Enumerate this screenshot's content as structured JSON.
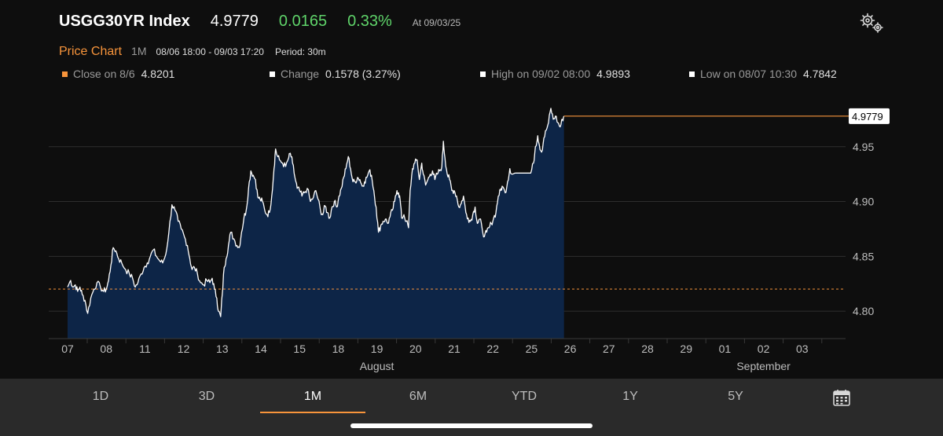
{
  "header": {
    "title": "USGG30YR Index",
    "last": "4.9779",
    "change": "0.0165",
    "change_pct": "0.33%",
    "as_of": "At 09/03/25",
    "change_color": "#5fd46a"
  },
  "subheader": {
    "label": "Price Chart",
    "period_button": "1M",
    "range": "08/06 18:00 - 09/03 17:20",
    "period": "Period: 30m"
  },
  "stats": {
    "close_label": "Close on 8/6",
    "close_value": "4.8201",
    "change_label": "Change",
    "change_value": "0.1578 (3.27%)",
    "high_label": "High on 09/02 08:00",
    "high_value": "4.9893",
    "low_label": "Low on 08/07 10:30",
    "low_value": "4.7842"
  },
  "chart_data": {
    "type": "area",
    "ylim": [
      4.775,
      5.005
    ],
    "yticks": [
      4.8,
      4.85,
      4.9,
      4.95
    ],
    "ytick_labels": [
      "4.80",
      "4.85",
      "4.90",
      "4.95"
    ],
    "reference_line": 4.8201,
    "last_value_label": "4.9779",
    "days": [
      "07",
      "08",
      "11",
      "12",
      "13",
      "14",
      "15",
      "18",
      "19",
      "20",
      "21",
      "22",
      "25",
      "26",
      "27",
      "28",
      "29",
      "01",
      "02",
      "03"
    ],
    "months": [
      "August",
      "September"
    ],
    "anchors": [
      [
        0,
        4.822
      ],
      [
        0.08,
        4.828
      ],
      [
        0.14,
        4.822
      ],
      [
        0.2,
        4.824
      ],
      [
        0.26,
        4.818
      ],
      [
        0.32,
        4.822
      ],
      [
        0.38,
        4.815
      ],
      [
        0.45,
        4.81
      ],
      [
        0.52,
        4.798
      ],
      [
        0.6,
        4.812
      ],
      [
        0.68,
        4.82
      ],
      [
        0.76,
        4.826
      ],
      [
        0.85,
        4.822
      ],
      [
        0.93,
        4.818
      ],
      [
        1.0,
        4.82
      ],
      [
        1.06,
        4.828
      ],
      [
        1.12,
        4.842
      ],
      [
        1.18,
        4.858
      ],
      [
        1.25,
        4.855
      ],
      [
        1.32,
        4.848
      ],
      [
        1.4,
        4.844
      ],
      [
        1.5,
        4.838
      ],
      [
        1.6,
        4.834
      ],
      [
        1.68,
        4.83
      ],
      [
        1.75,
        4.822
      ],
      [
        1.82,
        4.826
      ],
      [
        1.9,
        4.834
      ],
      [
        1.98,
        4.84
      ],
      [
        2.06,
        4.844
      ],
      [
        2.14,
        4.85
      ],
      [
        2.22,
        4.856
      ],
      [
        2.3,
        4.85
      ],
      [
        2.38,
        4.846
      ],
      [
        2.46,
        4.844
      ],
      [
        2.54,
        4.852
      ],
      [
        2.62,
        4.872
      ],
      [
        2.7,
        4.897
      ],
      [
        2.78,
        4.892
      ],
      [
        2.86,
        4.882
      ],
      [
        2.94,
        4.875
      ],
      [
        3.02,
        4.868
      ],
      [
        3.1,
        4.86
      ],
      [
        3.16,
        4.848
      ],
      [
        3.22,
        4.838
      ],
      [
        3.28,
        4.84
      ],
      [
        3.36,
        4.834
      ],
      [
        3.44,
        4.826
      ],
      [
        3.52,
        4.824
      ],
      [
        3.6,
        4.828
      ],
      [
        3.68,
        4.826
      ],
      [
        3.74,
        4.83
      ],
      [
        3.8,
        4.82
      ],
      [
        3.86,
        4.812
      ],
      [
        3.9,
        4.8
      ],
      [
        3.96,
        4.795
      ],
      [
        4.0,
        4.815
      ],
      [
        4.05,
        4.84
      ],
      [
        4.1,
        4.848
      ],
      [
        4.16,
        4.86
      ],
      [
        4.22,
        4.872
      ],
      [
        4.3,
        4.866
      ],
      [
        4.38,
        4.86
      ],
      [
        4.44,
        4.858
      ],
      [
        4.5,
        4.872
      ],
      [
        4.56,
        4.885
      ],
      [
        4.62,
        4.892
      ],
      [
        4.68,
        4.912
      ],
      [
        4.74,
        4.928
      ],
      [
        4.8,
        4.924
      ],
      [
        4.86,
        4.92
      ],
      [
        4.92,
        4.904
      ],
      [
        4.98,
        4.902
      ],
      [
        5.04,
        4.9
      ],
      [
        5.1,
        4.892
      ],
      [
        5.16,
        4.888
      ],
      [
        5.22,
        4.89
      ],
      [
        5.28,
        4.905
      ],
      [
        5.34,
        4.93
      ],
      [
        5.38,
        4.948
      ],
      [
        5.42,
        4.942
      ],
      [
        5.48,
        4.938
      ],
      [
        5.56,
        4.935
      ],
      [
        5.64,
        4.932
      ],
      [
        5.72,
        4.94
      ],
      [
        5.76,
        4.944
      ],
      [
        5.82,
        4.935
      ],
      [
        5.88,
        4.922
      ],
      [
        5.94,
        4.912
      ],
      [
        6.0,
        4.91
      ],
      [
        6.06,
        4.905
      ],
      [
        6.12,
        4.908
      ],
      [
        6.2,
        4.912
      ],
      [
        6.28,
        4.9
      ],
      [
        6.36,
        4.904
      ],
      [
        6.42,
        4.91
      ],
      [
        6.48,
        4.902
      ],
      [
        6.54,
        4.892
      ],
      [
        6.6,
        4.888
      ],
      [
        6.66,
        4.896
      ],
      [
        6.72,
        4.89
      ],
      [
        6.78,
        4.885
      ],
      [
        6.84,
        4.895
      ],
      [
        6.9,
        4.9
      ],
      [
        6.96,
        4.895
      ],
      [
        7.02,
        4.905
      ],
      [
        7.08,
        4.912
      ],
      [
        7.14,
        4.922
      ],
      [
        7.2,
        4.93
      ],
      [
        7.26,
        4.941
      ],
      [
        7.32,
        4.93
      ],
      [
        7.38,
        4.918
      ],
      [
        7.44,
        4.918
      ],
      [
        7.5,
        4.922
      ],
      [
        7.56,
        4.92
      ],
      [
        7.62,
        4.914
      ],
      [
        7.68,
        4.918
      ],
      [
        7.74,
        4.922
      ],
      [
        7.8,
        4.928
      ],
      [
        7.86,
        4.924
      ],
      [
        7.92,
        4.91
      ],
      [
        7.98,
        4.895
      ],
      [
        8.04,
        4.872
      ],
      [
        8.1,
        4.878
      ],
      [
        8.16,
        4.882
      ],
      [
        8.22,
        4.884
      ],
      [
        8.28,
        4.88
      ],
      [
        8.34,
        4.886
      ],
      [
        8.4,
        4.892
      ],
      [
        8.46,
        4.9
      ],
      [
        8.52,
        4.91
      ],
      [
        8.56,
        4.908
      ],
      [
        8.6,
        4.902
      ],
      [
        8.64,
        4.885
      ],
      [
        8.7,
        4.888
      ],
      [
        8.76,
        4.882
      ],
      [
        8.82,
        4.876
      ],
      [
        8.86,
        4.91
      ],
      [
        8.92,
        4.93
      ],
      [
        8.98,
        4.935
      ],
      [
        9.04,
        4.938
      ],
      [
        9.1,
        4.92
      ],
      [
        9.16,
        4.935
      ],
      [
        9.2,
        4.925
      ],
      [
        9.26,
        4.915
      ],
      [
        9.32,
        4.92
      ],
      [
        9.38,
        4.925
      ],
      [
        9.44,
        4.928
      ],
      [
        9.5,
        4.92
      ],
      [
        9.56,
        4.925
      ],
      [
        9.62,
        4.928
      ],
      [
        9.68,
        4.932
      ],
      [
        9.72,
        4.955
      ],
      [
        9.76,
        4.94
      ],
      [
        9.82,
        4.925
      ],
      [
        9.88,
        4.92
      ],
      [
        9.94,
        4.91
      ],
      [
        10.0,
        4.91
      ],
      [
        10.06,
        4.905
      ],
      [
        10.12,
        4.895
      ],
      [
        10.18,
        4.898
      ],
      [
        10.24,
        4.905
      ],
      [
        10.3,
        4.89
      ],
      [
        10.36,
        4.885
      ],
      [
        10.42,
        4.882
      ],
      [
        10.48,
        4.888
      ],
      [
        10.54,
        4.895
      ],
      [
        10.6,
        4.88
      ],
      [
        10.66,
        4.884
      ],
      [
        10.72,
        4.876
      ],
      [
        10.78,
        4.868
      ],
      [
        10.84,
        4.872
      ],
      [
        10.9,
        4.876
      ],
      [
        10.96,
        4.88
      ],
      [
        11.02,
        4.885
      ],
      [
        11.08,
        4.89
      ],
      [
        11.14,
        4.905
      ],
      [
        11.2,
        4.91
      ],
      [
        11.24,
        4.914
      ],
      [
        11.32,
        4.908
      ],
      [
        11.38,
        4.918
      ],
      [
        11.44,
        4.93
      ],
      [
        11.5,
        4.925
      ],
      [
        11.6,
        4.926
      ],
      [
        11.72,
        4.926
      ],
      [
        11.85,
        4.926
      ],
      [
        11.98,
        4.926
      ],
      [
        12.05,
        4.935
      ],
      [
        12.1,
        4.95
      ],
      [
        12.16,
        4.96
      ],
      [
        12.2,
        4.952
      ],
      [
        12.26,
        4.945
      ],
      [
        12.32,
        4.958
      ],
      [
        12.38,
        4.965
      ],
      [
        12.44,
        4.972
      ],
      [
        12.5,
        4.985
      ],
      [
        12.56,
        4.975
      ],
      [
        12.62,
        4.978
      ],
      [
        12.68,
        4.972
      ],
      [
        12.74,
        4.968
      ],
      [
        12.8,
        4.975
      ],
      [
        12.84,
        4.978
      ]
    ]
  },
  "tabs": [
    {
      "label": "1D"
    },
    {
      "label": "3D"
    },
    {
      "label": "1M"
    },
    {
      "label": "6M"
    },
    {
      "label": "YTD"
    },
    {
      "label": "1Y"
    },
    {
      "label": "5Y"
    }
  ],
  "active_tab": "1M",
  "colors": {
    "accent": "#f7943b",
    "area_fill": "#0d2547",
    "line": "#ffffff",
    "background": "#0e0e0e"
  }
}
